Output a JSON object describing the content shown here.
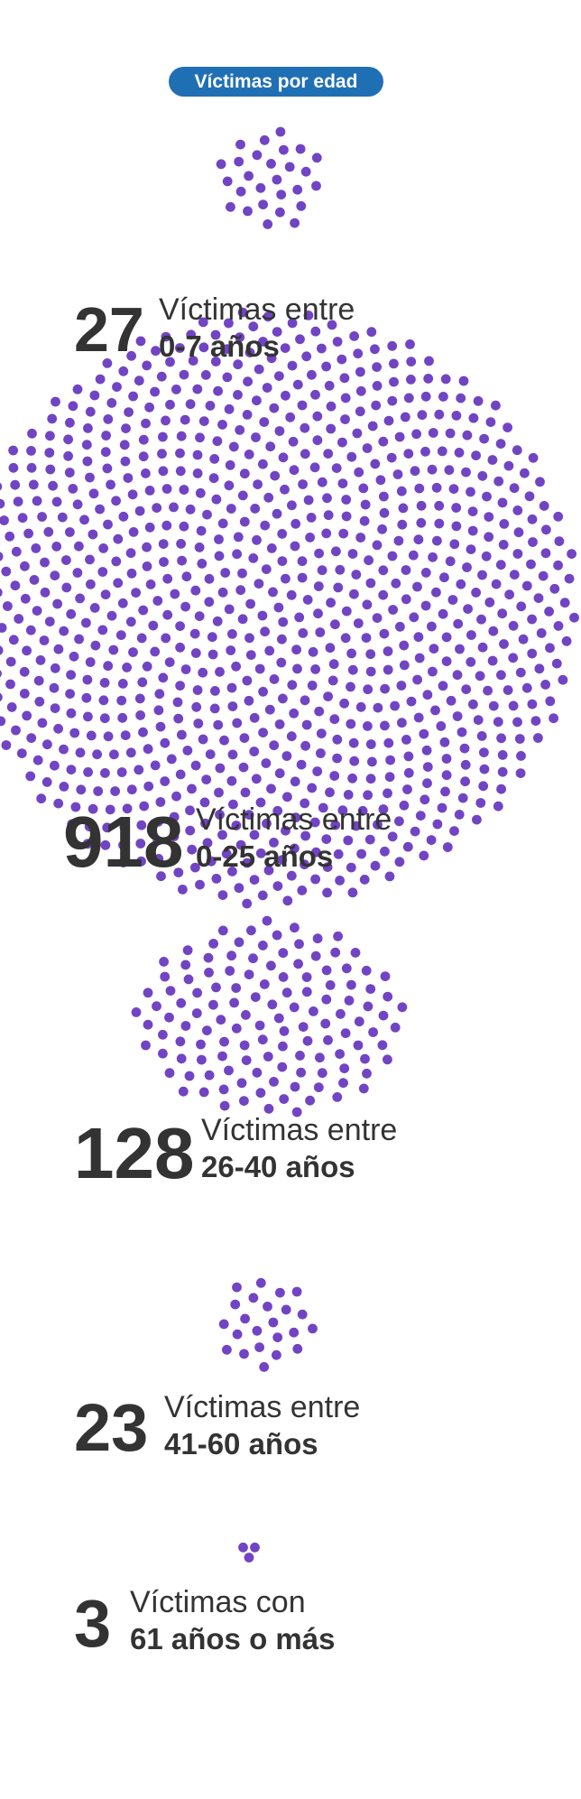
{
  "header": {
    "badge": "Víctimas por edad"
  },
  "colors": {
    "badge": "#1f6fb5",
    "dot": "#7144c4",
    "text": "#333333"
  },
  "chart_data": {
    "type": "dot-cluster",
    "title": "Víctimas por edad",
    "groups": [
      {
        "count": 27,
        "count_label": "27",
        "line1": "Víctimas entre",
        "line2": "0-7 años"
      },
      {
        "count": 918,
        "count_label": "918",
        "line1": "Víctimas entre",
        "line2": "0-25 años"
      },
      {
        "count": 128,
        "count_label": "128",
        "line1": "Víctimas entre",
        "line2": "26-40 años"
      },
      {
        "count": 23,
        "count_label": "23",
        "line1": "Víctimas entre",
        "line2": "41-60 años"
      },
      {
        "count": 3,
        "count_label": "3",
        "line1": "Víctimas con",
        "line2": "61 años o más"
      }
    ]
  }
}
